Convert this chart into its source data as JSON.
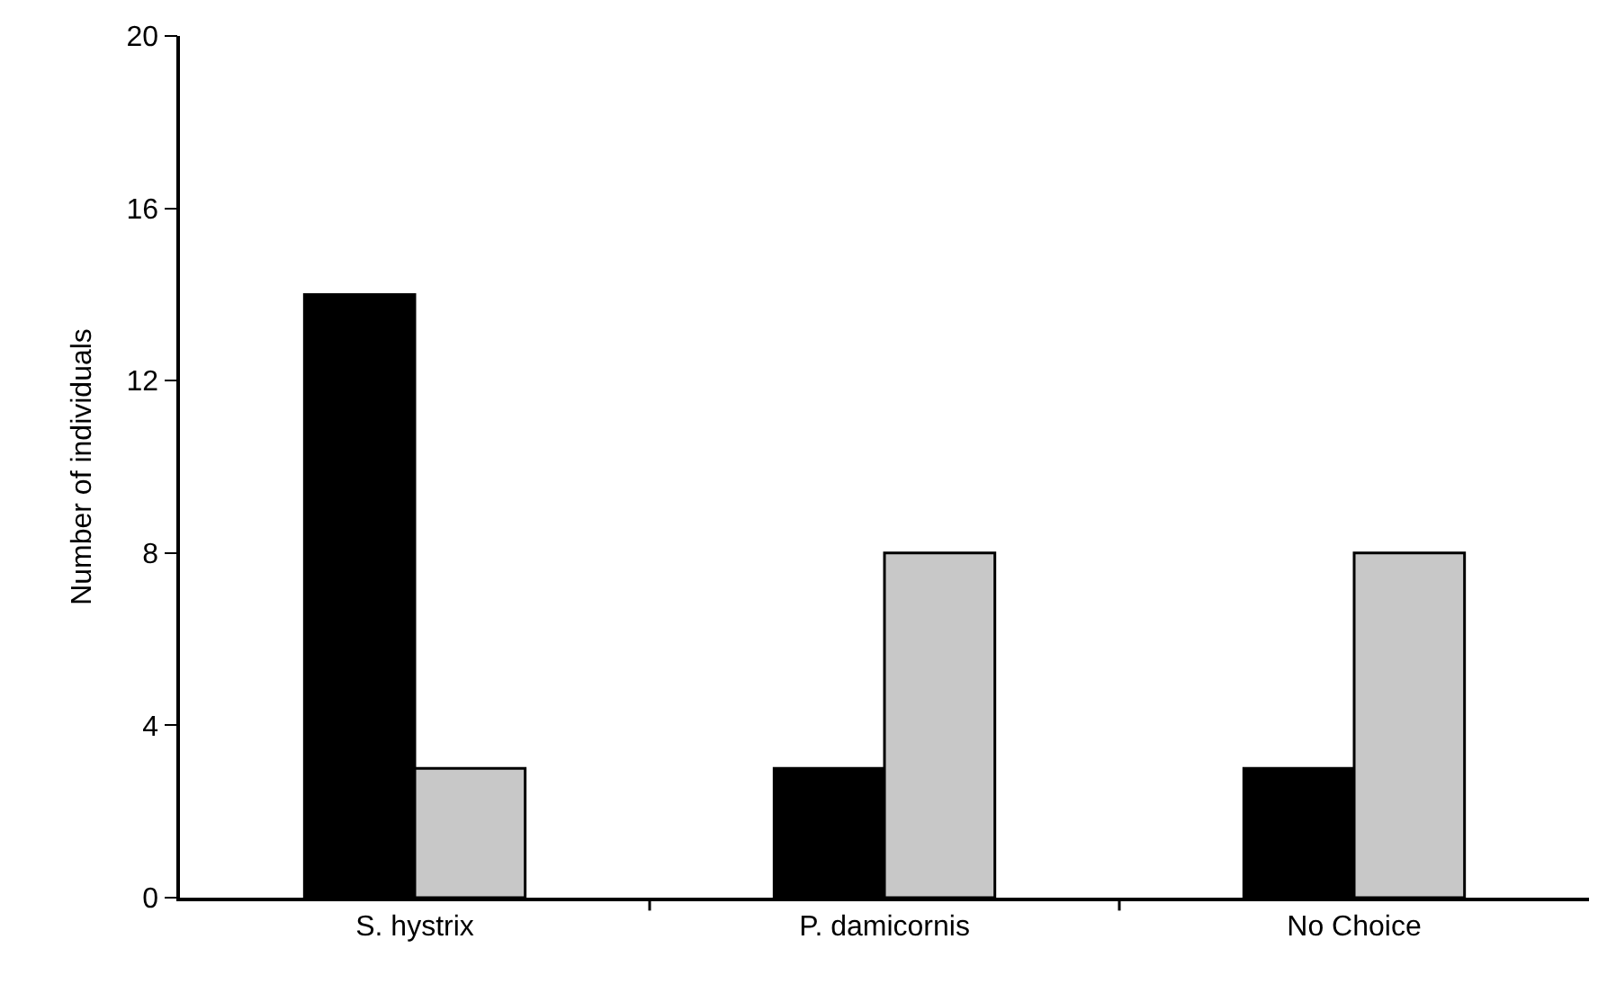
{
  "chart_data": {
    "type": "bar",
    "ylabel": "Number of individuals",
    "categories": [
      "S. hystrix",
      "P. damicornis",
      "No Choice"
    ],
    "series": [
      {
        "color": "#000000",
        "values": [
          14,
          3,
          3
        ]
      },
      {
        "color": "#c8c8c8",
        "values": [
          3,
          8,
          8
        ]
      }
    ],
    "ylim": [
      0,
      20
    ],
    "yticks": [
      0,
      4,
      8,
      12,
      16,
      20
    ],
    "legend": false
  }
}
